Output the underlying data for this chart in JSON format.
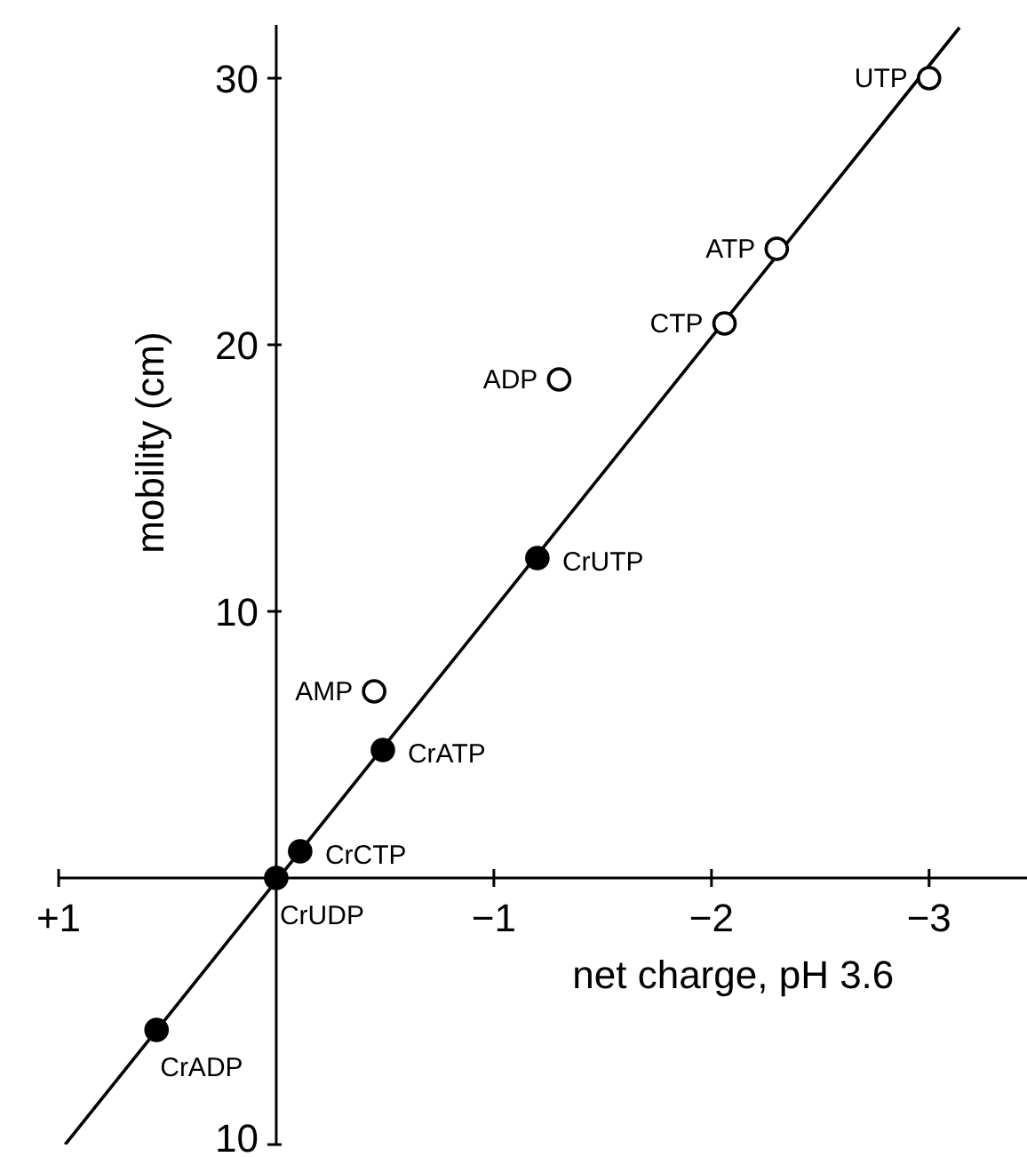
{
  "chart_data": {
    "type": "scatter",
    "xlabel": "net charge, pH 3.6",
    "ylabel": "mobility (cm)",
    "xlim": [
      1,
      -3.45
    ],
    "xticks": [
      {
        "value": 1,
        "label": "+1"
      },
      -1,
      -2,
      -3
    ],
    "ylim": [
      -10,
      32
    ],
    "yticks": [
      {
        "value": -10,
        "label": "10"
      },
      10,
      20,
      30
    ],
    "grid": false,
    "legend": false,
    "marker": "circle",
    "series": [
      {
        "type": "scatter",
        "color": "#000000",
        "x": [
          -3.0,
          -2.3,
          -2.06,
          -1.3,
          -0.45
        ],
        "values": [
          30,
          23.6,
          20.8,
          18.7,
          7.0
        ],
        "value_labels": [
          "UTP",
          "ATP",
          "CTP",
          "ADP",
          "AMP"
        ]
      },
      {
        "type": "scatter",
        "color": "#000000",
        "x": [
          -1.2,
          -0.49,
          -0.11,
          0,
          0.55
        ],
        "values": [
          12.0,
          4.8,
          1.0,
          0,
          -5.7
        ],
        "value_labels": [
          "CrUTP",
          "CrATP",
          "CrCTP",
          "CrUDP",
          "CrADP"
        ]
      },
      {
        "type": "line",
        "color": "#000000",
        "marker": "none",
        "x": [
          0.97,
          -3.14
        ],
        "values": [
          -10,
          31.9
        ]
      }
    ]
  }
}
